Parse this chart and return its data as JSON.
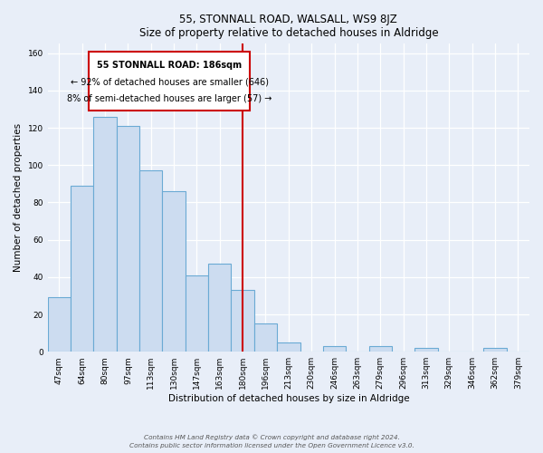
{
  "title": "55, STONNALL ROAD, WALSALL, WS9 8JZ",
  "subtitle": "Size of property relative to detached houses in Aldridge",
  "xlabel": "Distribution of detached houses by size in Aldridge",
  "ylabel": "Number of detached properties",
  "bar_labels": [
    "47sqm",
    "64sqm",
    "80sqm",
    "97sqm",
    "113sqm",
    "130sqm",
    "147sqm",
    "163sqm",
    "180sqm",
    "196sqm",
    "213sqm",
    "230sqm",
    "246sqm",
    "263sqm",
    "279sqm",
    "296sqm",
    "313sqm",
    "329sqm",
    "346sqm",
    "362sqm",
    "379sqm"
  ],
  "bar_heights": [
    29,
    89,
    126,
    121,
    97,
    86,
    41,
    47,
    33,
    15,
    5,
    0,
    3,
    0,
    3,
    0,
    2,
    0,
    0,
    2,
    0
  ],
  "bar_color": "#ccdcf0",
  "bar_edge_color": "#6aaad4",
  "property_line_x": 8.5,
  "annotation_text1": "55 STONNALL ROAD: 186sqm",
  "annotation_text2": "← 92% of detached houses are smaller (646)",
  "annotation_text3": "8% of semi-detached houses are larger (57) →",
  "annotation_box_color": "#ffffff",
  "annotation_box_edge": "#cc0000",
  "property_line_color": "#cc0000",
  "ylim": [
    0,
    165
  ],
  "yticks": [
    0,
    20,
    40,
    60,
    80,
    100,
    120,
    140,
    160
  ],
  "footer1": "Contains HM Land Registry data © Crown copyright and database right 2024.",
  "footer2": "Contains public sector information licensed under the Open Government Licence v3.0.",
  "background_color": "#e8eef8",
  "plot_bg_color": "#e8eef8"
}
